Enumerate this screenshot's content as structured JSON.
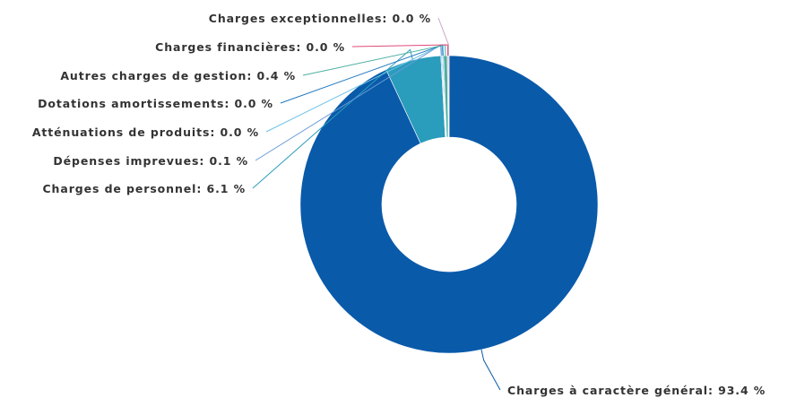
{
  "chart_data": {
    "type": "pie",
    "title": "",
    "slices": [
      {
        "name": "Charges à caractère général",
        "value": 93.4,
        "label": "Charges à caractère général: 93.4 %",
        "color": "#0a5aaa"
      },
      {
        "name": "Charges de personnel",
        "value": 6.1,
        "label": "Charges de personnel: 6.1 %",
        "color": "#2a9cbc"
      },
      {
        "name": "Dépenses imprevues",
        "value": 0.1,
        "label": "Dépenses imprevues: 0.1 %",
        "color": "#6a9bd8"
      },
      {
        "name": "Atténuations de produits",
        "value": 0.0,
        "label": "Atténuations de produits: 0.0 %",
        "color": "#6fc2e6"
      },
      {
        "name": "Dotations amortissements",
        "value": 0.0,
        "label": "Dotations amortissements: 0.0 %",
        "color": "#1f77c0"
      },
      {
        "name": "Autres charges de gestion",
        "value": 0.4,
        "label": "Autres charges de gestion: 0.4 %",
        "color": "#4ab0a0"
      },
      {
        "name": "Charges financières",
        "value": 0.0,
        "label": "Charges financières: 0.0 %",
        "color": "#e04a78"
      },
      {
        "name": "Charges exceptionnelles",
        "value": 0.0,
        "label": "Charges exceptionnelles: 0.0 %",
        "color": "#c8a8c8"
      }
    ]
  }
}
